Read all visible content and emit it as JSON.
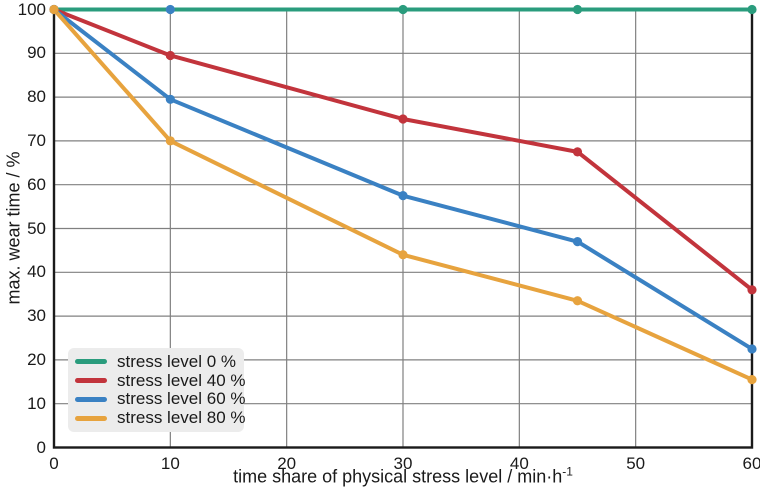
{
  "chart_data": {
    "type": "line",
    "title": "",
    "xlabel": "time share of physical stress level / min·h⁻¹",
    "xlabel_base": "time share of physical stress level / min·h",
    "xlabel_sup": "-1",
    "ylabel": "max. wear time / %",
    "x": [
      0,
      10,
      30,
      45,
      60
    ],
    "xticks": [
      0,
      10,
      20,
      30,
      40,
      50,
      60
    ],
    "yticks": [
      0,
      10,
      20,
      30,
      40,
      50,
      60,
      70,
      80,
      90,
      100
    ],
    "xlim": [
      0,
      60
    ],
    "ylim": [
      0,
      100
    ],
    "grid": true,
    "legend_position": "lower-left",
    "series": [
      {
        "name": "stress level 0 %",
        "color": "#2a9c7d",
        "values": [
          100,
          100,
          100,
          100,
          100
        ],
        "marker_color_overrides": {
          "1": "#3a81c3"
        }
      },
      {
        "name": "stress level 40 %",
        "color": "#c2343c",
        "values": [
          100,
          89.5,
          75,
          67.5,
          36
        ]
      },
      {
        "name": "stress level 60 %",
        "color": "#3a81c3",
        "values": [
          100,
          79.5,
          57.5,
          47,
          22.5
        ]
      },
      {
        "name": "stress level 80 %",
        "color": "#e7a33e",
        "values": [
          100,
          70,
          44,
          33.5,
          15.5
        ]
      }
    ],
    "colors": {
      "background": "#ffffff",
      "grid": "#808080",
      "axis": "#1a1a1a",
      "text": "#1a1a1a",
      "legend_background": "#ececec"
    }
  }
}
